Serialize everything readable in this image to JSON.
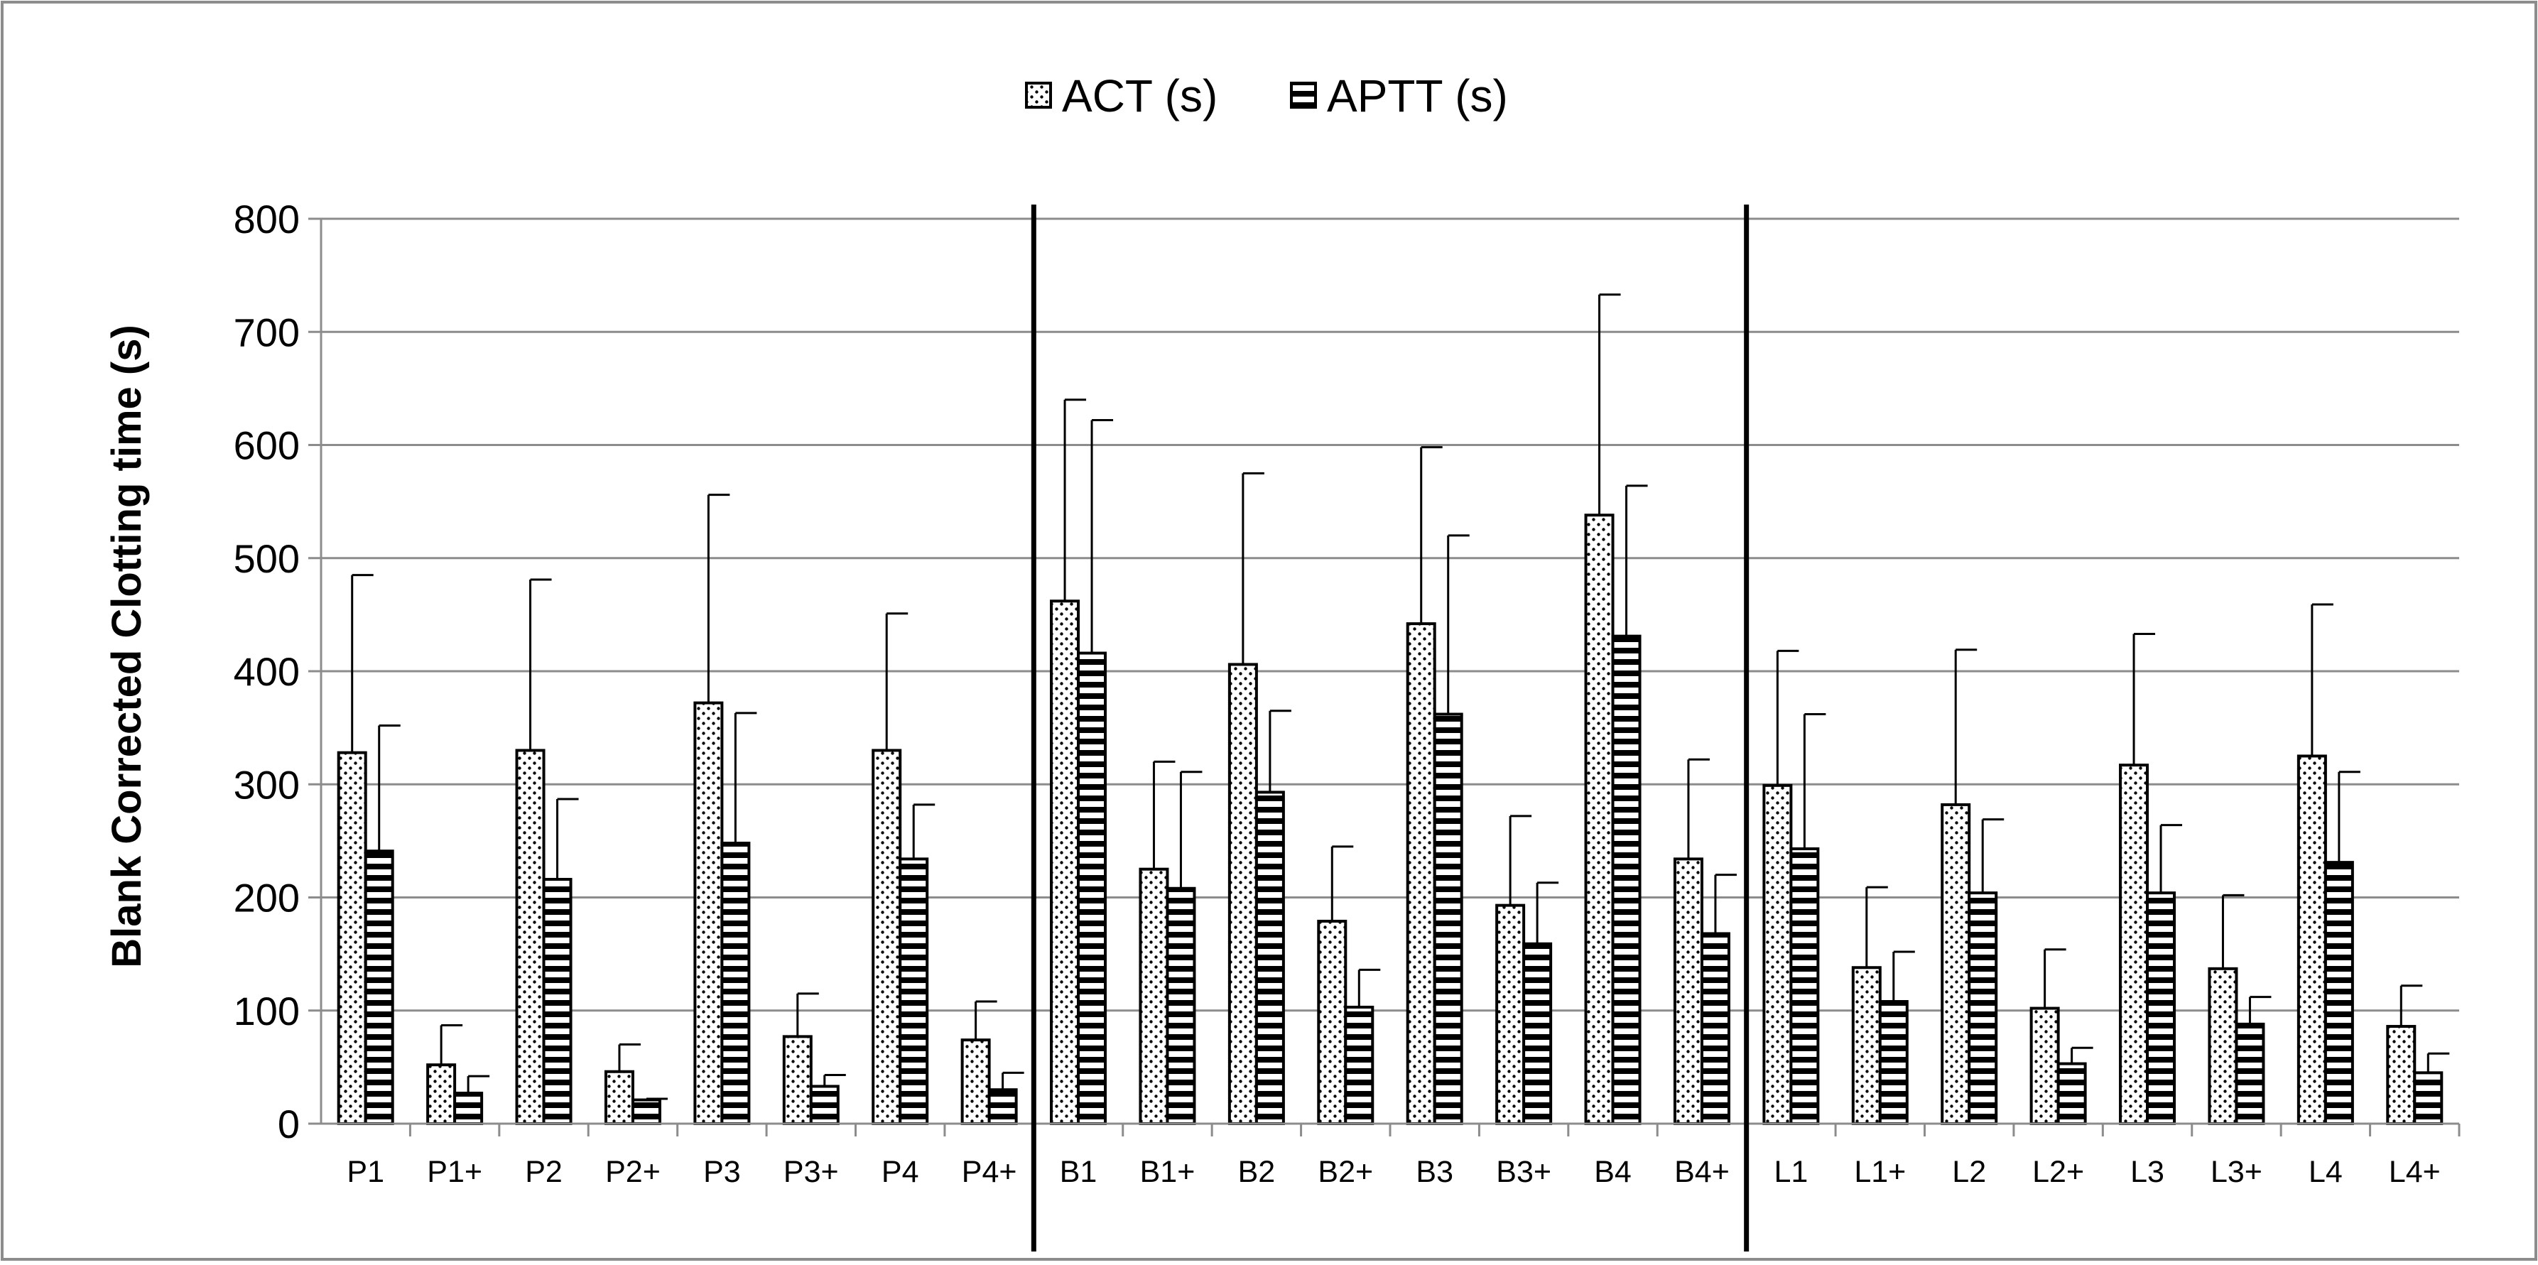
{
  "chart_data": {
    "type": "bar",
    "ylabel": "Blank Corrected Clotting time (s)",
    "xlabel": "",
    "ylim": [
      0,
      800
    ],
    "yticks": [
      0,
      100,
      200,
      300,
      400,
      500,
      600,
      700,
      800
    ],
    "grid": true,
    "legend_position": "top-center",
    "categories": [
      "P1",
      "P1+",
      "P2",
      "P2+",
      "P3",
      "P3+",
      "P4",
      "P4+",
      "B1",
      "B1+",
      "B2",
      "B2+",
      "B3",
      "B3+",
      "B4",
      "B4+",
      "L1",
      "L1+",
      "L2",
      "L2+",
      "L3",
      "L3+",
      "L4",
      "L4+"
    ],
    "group_dividers_after": [
      "P4+",
      "B4+"
    ],
    "series": [
      {
        "name": "ACT (s)",
        "pattern": "dots",
        "values": [
          328,
          52,
          330,
          46,
          372,
          77,
          330,
          74,
          462,
          225,
          406,
          179,
          442,
          193,
          538,
          234,
          299,
          138,
          282,
          102,
          317,
          137,
          325,
          86
        ],
        "error_upper": [
          485,
          87,
          481,
          70,
          556,
          115,
          451,
          108,
          640,
          320,
          575,
          245,
          598,
          272,
          733,
          322,
          418,
          209,
          419,
          154,
          433,
          202,
          459,
          122
        ]
      },
      {
        "name": "APTT (s)",
        "pattern": "horizontal-stripes",
        "values": [
          241,
          27,
          216,
          21,
          248,
          33,
          234,
          30,
          416,
          208,
          293,
          103,
          362,
          159,
          431,
          168,
          243,
          108,
          204,
          53,
          204,
          88,
          231,
          45
        ],
        "error_upper": [
          352,
          42,
          287,
          22,
          363,
          43,
          282,
          45,
          622,
          311,
          365,
          136,
          520,
          213,
          564,
          220,
          362,
          152,
          269,
          67,
          264,
          112,
          311,
          62
        ]
      }
    ],
    "colors": {
      "border": "#000000",
      "gridline": "#8c8c8c",
      "bar_fill": "#ffffff",
      "frame": "#8c8c8c"
    }
  }
}
